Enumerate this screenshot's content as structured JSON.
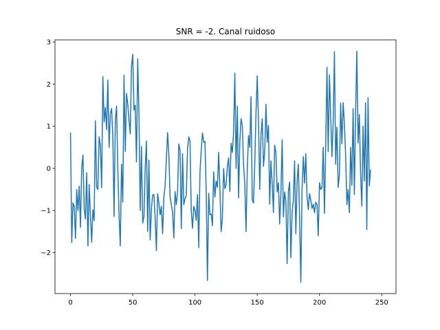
{
  "chart_data": {
    "type": "line",
    "title": "SNR = -2. Canal ruidoso",
    "xlabel": "",
    "ylabel": "",
    "xlim": [
      -12.45,
      261.45
    ],
    "ylim": [
      -2.97,
      3.05
    ],
    "x_ticks": [
      0,
      50,
      100,
      150,
      200,
      250
    ],
    "y_ticks": [
      -2,
      -1,
      0,
      1,
      2,
      3
    ],
    "grid": false,
    "color": "#1f77b4",
    "series": [
      {
        "name": "",
        "x_start": 0,
        "x_step": 1,
        "values": [
          0.85,
          -1.76,
          -0.82,
          -0.9,
          -1.66,
          -0.5,
          -1.0,
          -0.42,
          -1.4,
          0.0,
          0.32,
          -0.95,
          -1.2,
          -0.1,
          -1.84,
          -0.38,
          -1.1,
          -1.75,
          -0.98,
          -1.24,
          1.13,
          -0.45,
          -0.5,
          0.75,
          0.55,
          -0.46,
          2.18,
          1.1,
          1.45,
          0.92,
          2.1,
          0.5,
          1.3,
          1.42,
          0.75,
          -1.14,
          1.15,
          1.48,
          0.0,
          -1.1,
          -1.84,
          0.1,
          -0.8,
          2.21,
          0.4,
          1.78,
          1.52,
          1.14,
          0.82,
          2.42,
          2.71,
          1.38,
          1.5,
          0.15,
          2.6,
          1.28,
          -1.0,
          0.52,
          -1.3,
          -1.14,
          0.0,
          0.65,
          -1.5,
          0.2,
          -1.7,
          -0.95,
          -0.63,
          -0.62,
          -1.18,
          -1.95,
          -0.6,
          -0.82,
          -1.1,
          -0.9,
          -1.55,
          -0.68,
          -0.42,
          0.23,
          0.85,
          0.32,
          -0.68,
          -0.86,
          -1.04,
          -1.65,
          -0.55,
          -0.86,
          -0.56,
          0.58,
          0.42,
          -1.43,
          0.35,
          -0.86,
          -0.72,
          -0.65,
          0.46,
          0.75,
          0.65,
          -1.02,
          -1.42,
          -0.9,
          -1.0,
          -1.23,
          -0.62,
          -1.88,
          -0.08,
          0.42,
          0.84,
          0.62,
          0.64,
          -0.55,
          -2.66,
          -0.59,
          -1.1,
          -1.08,
          -1.36,
          -0.08,
          -0.68,
          -0.3,
          -0.45,
          0.38,
          -0.45,
          -1.5,
          -1.18,
          0.0,
          -0.48,
          -0.38,
          0.05,
          0.25,
          -0.55,
          0.6,
          0.38,
          0.85,
          2.26,
          0.0,
          1.48,
          -0.7,
          0.64,
          1.18,
          1.02,
          0.08,
          -0.38,
          -1.5,
          0.0,
          0.78,
          0.5,
          1.7,
          -0.75,
          -0.82,
          0.12,
          1.32,
          2.2,
          1.1,
          -0.5,
          0.8,
          1.18,
          0.05,
          0.4,
          1.52,
          0.62,
          1.02,
          -0.85,
          0.18,
          -0.35,
          -1.05,
          0.55,
          0.38,
          -0.56,
          -0.34,
          -1.32,
          -0.58,
          0.68,
          -1.15,
          -0.56,
          -0.78,
          -2.26,
          -0.55,
          -0.32,
          -2.12,
          -1.04,
          -0.76,
          0.18,
          -1.55,
          -0.32,
          0.1,
          -1.15,
          -2.7,
          -0.5,
          0.28,
          -0.35,
          0.35,
          -0.66,
          -0.98,
          -0.6,
          -0.75,
          -0.95,
          -0.85,
          -1.05,
          -0.8,
          -0.86,
          -1.6,
          -0.34,
          -0.5,
          -0.46,
          0.5,
          -1.07,
          0.58,
          2.4,
          0.4,
          2.22,
          1.22,
          0.28,
          1.1,
          2.77,
          0.1,
          0.98,
          -0.45,
          -0.15,
          1.55,
          0.58,
          1.56,
          1.05,
          0.3,
          -0.86,
          -0.5,
          -1.05,
          0.5,
          -0.4,
          1.42,
          -0.62,
          1.3,
          2.78,
          0.6,
          1.28,
          -0.12,
          -0.9,
          1.0,
          -0.3,
          1.56,
          -1.45,
          1.68,
          -0.42,
          -0.03
        ]
      }
    ]
  }
}
